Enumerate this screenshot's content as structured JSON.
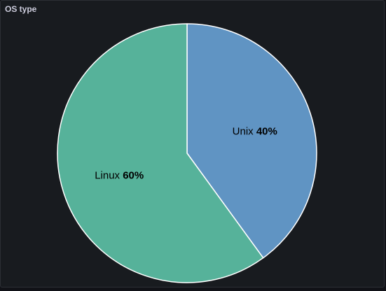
{
  "panel": {
    "title": "OS type"
  },
  "chart_data": {
    "type": "pie",
    "title": "OS type",
    "slices": [
      {
        "label": "Unix",
        "value": 40,
        "percent_label": "40%",
        "color": "#6094c3"
      },
      {
        "label": "Linux",
        "value": 60,
        "percent_label": "60%",
        "color": "#56b29a"
      }
    ],
    "start_angle_deg": 0,
    "direction": "clockwise",
    "slice_border_color": "#ffffff"
  }
}
